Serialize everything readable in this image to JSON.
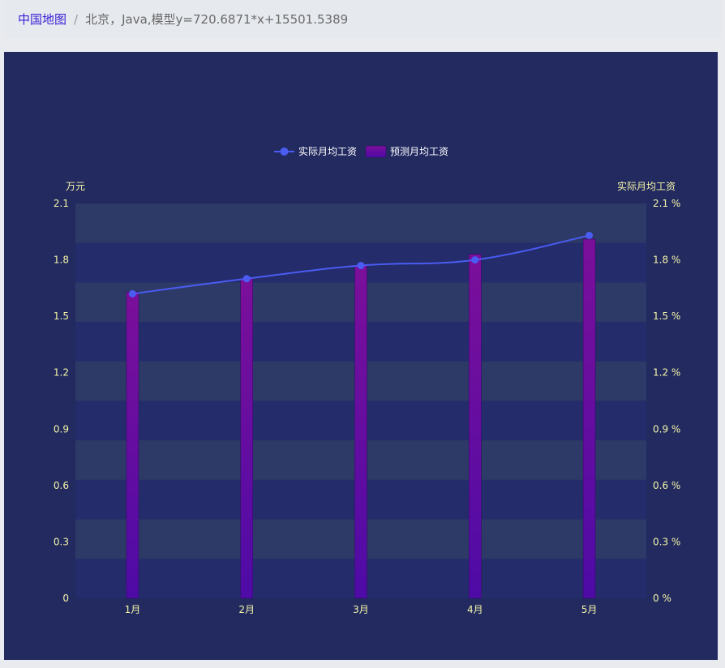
{
  "breadcrumb": {
    "home": "中国地图",
    "separator": "/",
    "current": "北京，Java,模型y=720.6871*x+15501.5389"
  },
  "colors": {
    "panel_bg": "#222a60",
    "line": "#4a5cf2",
    "bar_top": "#7b0f9a",
    "bar_bottom": "#4e0ba6",
    "axis_text": "#f5f5a8",
    "legend_text": "#ffffff"
  },
  "chart_data": {
    "type": "bar",
    "categories": [
      "1月",
      "2月",
      "3月",
      "4月",
      "5月"
    ],
    "series": [
      {
        "name": "实际月均工资",
        "type": "line",
        "values": [
          1.62,
          1.7,
          1.77,
          1.8,
          1.93
        ]
      },
      {
        "name": "预测月均工资",
        "type": "bar",
        "values": [
          1.63,
          1.7,
          1.77,
          1.83,
          1.91
        ]
      }
    ],
    "y_left": {
      "label": "万元",
      "range": [
        0,
        2.1
      ],
      "ticks": [
        "0",
        "0.3",
        "0.6",
        "0.9",
        "1.2",
        "1.5",
        "1.8",
        "2.1"
      ]
    },
    "y_right": {
      "label": "实际月均工资",
      "ticks": [
        "0 %",
        "0.3 %",
        "0.6 %",
        "0.9 %",
        "1.2 %",
        "1.5 %",
        "1.8 %",
        "2.1 %"
      ]
    },
    "legend_position": "top-center",
    "split_area": true
  }
}
